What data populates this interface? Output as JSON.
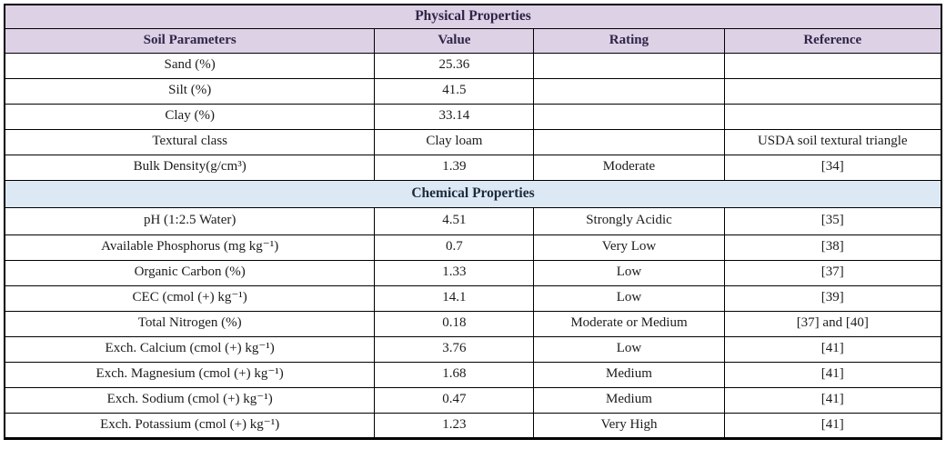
{
  "colors": {
    "purple_header_bg": "#ddd1e6",
    "purple_header_text": "#2e2547",
    "blue_header_bg": "#dce8f4",
    "blue_header_text": "#1c2b3d",
    "border_color": "#000000",
    "body_text": "#1c1c1c"
  },
  "table": {
    "columns": [
      "Soil Parameters",
      "Value",
      "Rating",
      "Reference"
    ],
    "column_widths_pct": [
      39.5,
      17.0,
      20.3,
      23.2
    ],
    "sections": [
      {
        "title": "Physical Properties",
        "theme": "purple",
        "show_column_header": true,
        "rows": [
          {
            "parameter": "Sand (%)",
            "value": "25.36",
            "rating": "",
            "reference": ""
          },
          {
            "parameter": "Silt (%)",
            "value": "41.5",
            "rating": "",
            "reference": ""
          },
          {
            "parameter": "Clay (%)",
            "value": "33.14",
            "rating": "",
            "reference": ""
          },
          {
            "parameter": "Textural class",
            "value": "Clay loam",
            "rating": "",
            "reference": "USDA soil textural triangle"
          },
          {
            "parameter": "Bulk Density(g/cm³)",
            "value": "1.39",
            "rating": "Moderate",
            "reference": "[34]"
          }
        ]
      },
      {
        "title": "Chemical Properties",
        "theme": "blue",
        "show_column_header": false,
        "rows": [
          {
            "parameter": "pH (1:2.5 Water)",
            "value": "4.51",
            "rating": "Strongly Acidic",
            "reference": "[35]"
          },
          {
            "parameter": "Available Phosphorus (mg kg⁻¹)",
            "value": "0.7",
            "rating": "Very Low",
            "reference": "[38]"
          },
          {
            "parameter": "Organic Carbon (%)",
            "value": "1.33",
            "rating": "Low",
            "reference": "[37]"
          },
          {
            "parameter": "CEC (cmol (+) kg⁻¹)",
            "value": "14.1",
            "rating": "Low",
            "reference": "[39]"
          },
          {
            "parameter": "Total Nitrogen (%)",
            "value": "0.18",
            "rating": "Moderate or Medium",
            "reference": "[37] and [40]"
          },
          {
            "parameter": "Exch. Calcium (cmol (+) kg⁻¹)",
            "value": "3.76",
            "rating": "Low",
            "reference": "[41]"
          },
          {
            "parameter": "Exch. Magnesium (cmol (+) kg⁻¹)",
            "value": "1.68",
            "rating": "Medium",
            "reference": "[41]"
          },
          {
            "parameter": "Exch. Sodium (cmol (+) kg⁻¹)",
            "value": "0.47",
            "rating": "Medium",
            "reference": "[41]"
          },
          {
            "parameter": "Exch. Potassium (cmol (+) kg⁻¹)",
            "value": "1.23",
            "rating": "Very High",
            "reference": "[41]"
          }
        ]
      }
    ]
  }
}
